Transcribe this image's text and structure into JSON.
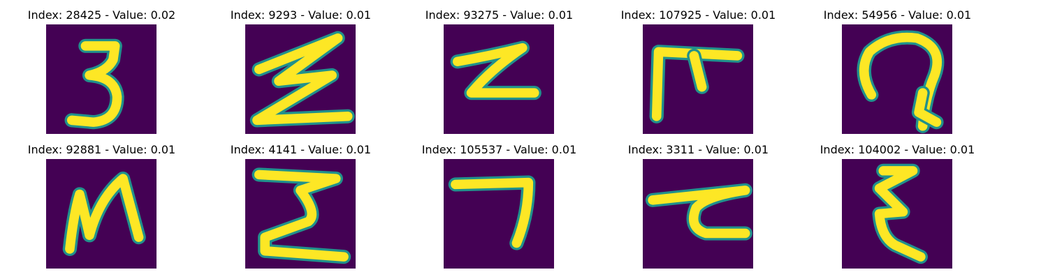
{
  "figure": {
    "background_color": "#440154",
    "stroke_core_color": "#fde725",
    "stroke_edge_color": "#21918c",
    "panels": [
      {
        "title": "Index: 28425 - Value: 0.02",
        "glyph": "digit-three"
      },
      {
        "title": "Index: 9293 - Value: 0.01",
        "glyph": "z-with-bar"
      },
      {
        "title": "Index: 93275 - Value: 0.01",
        "glyph": "small-z"
      },
      {
        "title": "Index: 107925 - Value: 0.01",
        "glyph": "pi-like-glyph"
      },
      {
        "title": "Index: 54956 - Value: 0.01",
        "glyph": "loop-glyph"
      },
      {
        "title": "Index: 92881 - Value: 0.01",
        "glyph": "n-like-glyph"
      },
      {
        "title": "Index: 4141 - Value: 0.01",
        "glyph": "sigma-like-glyph"
      },
      {
        "title": "Index: 105537 - Value: 0.01",
        "glyph": "seven-like-glyph"
      },
      {
        "title": "Index: 3311 - Value: 0.01",
        "glyph": "tau-like-glyph"
      },
      {
        "title": "Index: 104002 - Value: 0.01",
        "glyph": "epsilon-like-glyph"
      }
    ]
  }
}
